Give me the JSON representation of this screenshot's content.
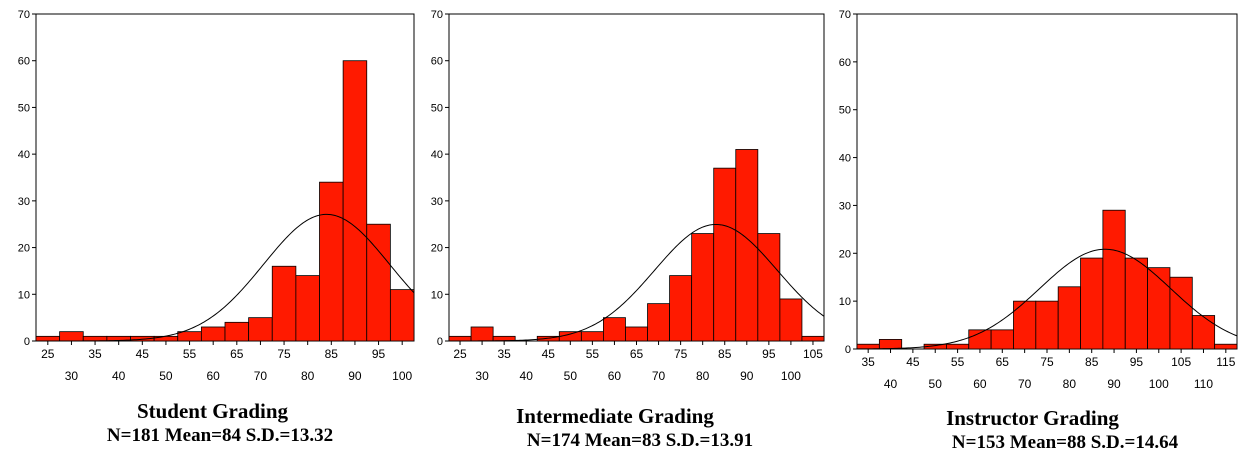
{
  "chart_data": [
    {
      "type": "bar",
      "title": "Student Grading",
      "subtitle": "N=181 Mean=84 S.D.=13.32",
      "bin_width": 5,
      "bins": [
        25,
        30,
        35,
        40,
        45,
        50,
        55,
        60,
        65,
        70,
        75,
        80,
        85,
        90,
        95,
        100
      ],
      "values": [
        1,
        2,
        1,
        1,
        1,
        1,
        2,
        3,
        4,
        5,
        16,
        14,
        34,
        60,
        25,
        11
      ],
      "x_ticks_top": [
        "25",
        "35",
        "45",
        "55",
        "65",
        "75",
        "85",
        "95"
      ],
      "x_ticks_bottom": [
        "30",
        "40",
        "50",
        "60",
        "70",
        "80",
        "90",
        "100"
      ],
      "y_ticks": [
        "0",
        "10",
        "20",
        "30",
        "40",
        "50",
        "60",
        "70"
      ],
      "ylim": [
        0,
        70
      ],
      "normal_curve": {
        "mean": 84,
        "sd": 13.32,
        "n": 181
      },
      "bar_color": "#ff1a00"
    },
    {
      "type": "bar",
      "title": "Intermediate Grading",
      "subtitle": "N=174 Mean=83 S.D.=13.91",
      "bin_width": 5,
      "bins": [
        25,
        30,
        35,
        40,
        45,
        50,
        55,
        60,
        65,
        70,
        75,
        80,
        85,
        90,
        95,
        100,
        105
      ],
      "values": [
        1,
        3,
        1,
        0,
        1,
        2,
        2,
        5,
        3,
        8,
        14,
        23,
        37,
        41,
        23,
        9,
        1
      ],
      "x_ticks_top": [
        "25",
        "35",
        "45",
        "55",
        "65",
        "75",
        "85",
        "95",
        "105"
      ],
      "x_ticks_bottom": [
        "30",
        "40",
        "50",
        "60",
        "70",
        "80",
        "90",
        "100"
      ],
      "y_ticks": [
        "0",
        "10",
        "20",
        "30",
        "40",
        "50",
        "60",
        "70"
      ],
      "ylim": [
        0,
        70
      ],
      "normal_curve": {
        "mean": 83,
        "sd": 13.91,
        "n": 174
      },
      "bar_color": "#ff1a00"
    },
    {
      "type": "bar",
      "title": "Instructor Grading",
      "subtitle": "N=153 Mean=88 S.D.=14.64",
      "bin_width": 5,
      "bins": [
        35,
        40,
        45,
        50,
        55,
        60,
        65,
        70,
        75,
        80,
        85,
        90,
        95,
        100,
        105,
        110,
        115
      ],
      "values": [
        1,
        2,
        0,
        1,
        1,
        4,
        4,
        10,
        10,
        13,
        19,
        29,
        19,
        17,
        15,
        7,
        1
      ],
      "x_ticks_top": [
        "35",
        "45",
        "55",
        "65",
        "75",
        "85",
        "95",
        "105",
        "115"
      ],
      "x_ticks_bottom": [
        "40",
        "50",
        "60",
        "70",
        "80",
        "90",
        "100",
        "110"
      ],
      "y_ticks": [
        "0",
        "10",
        "20",
        "30",
        "40",
        "50",
        "60",
        "70"
      ],
      "ylim": [
        0,
        70
      ],
      "normal_curve": {
        "mean": 88,
        "sd": 14.64,
        "n": 153
      },
      "bar_color": "#ff1a00"
    }
  ]
}
